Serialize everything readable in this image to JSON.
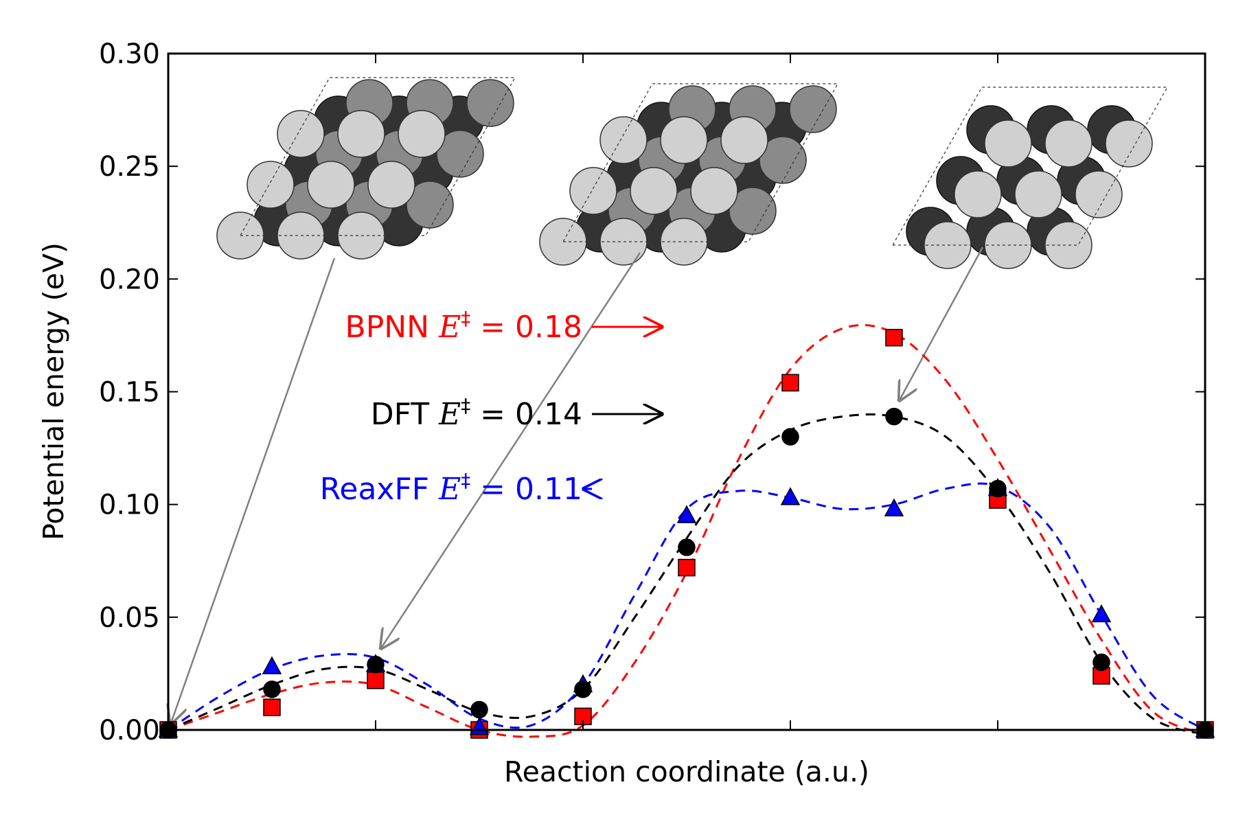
{
  "chart_data": {
    "type": "scatter",
    "xlabel": "Reaction coordinate (a.u.)",
    "ylabel": "Potential energy (eV)",
    "xlim": [
      0,
      10
    ],
    "ylim": [
      0,
      0.3
    ],
    "y_ticks": [
      "0.00",
      "0.05",
      "0.10",
      "0.15",
      "0.20",
      "0.25",
      "0.30"
    ],
    "x": [
      0,
      1,
      2,
      3,
      4,
      5,
      6,
      7,
      8,
      9,
      10
    ],
    "grid": false,
    "series": [
      {
        "name": "BPNN",
        "color": "#ff0000",
        "marker": "square",
        "values": [
          0.0,
          0.01,
          0.022,
          0.0,
          0.006,
          0.072,
          0.154,
          0.174,
          0.102,
          0.024,
          0.0
        ],
        "curve": [
          [
            0,
            0
          ],
          [
            0.5,
            0.008
          ],
          [
            1,
            0.016
          ],
          [
            1.5,
            0.021
          ],
          [
            2,
            0.02
          ],
          [
            2.5,
            0.01
          ],
          [
            3,
            0.0
          ],
          [
            3.5,
            -0.003
          ],
          [
            4,
            0.002
          ],
          [
            4.5,
            0.03
          ],
          [
            5,
            0.07
          ],
          [
            5.5,
            0.12
          ],
          [
            6,
            0.16
          ],
          [
            6.5,
            0.178
          ],
          [
            7,
            0.176
          ],
          [
            7.5,
            0.155
          ],
          [
            8,
            0.12
          ],
          [
            8.5,
            0.08
          ],
          [
            9,
            0.04
          ],
          [
            9.5,
            0.008
          ],
          [
            10,
            -0.002
          ]
        ]
      },
      {
        "name": "DFT",
        "color": "#000000",
        "marker": "circle",
        "values": [
          0.0,
          0.018,
          0.029,
          0.009,
          0.018,
          0.081,
          0.13,
          0.139,
          0.107,
          0.03,
          0.0
        ],
        "curve": [
          [
            0,
            0
          ],
          [
            0.5,
            0.01
          ],
          [
            1,
            0.02
          ],
          [
            1.5,
            0.027
          ],
          [
            2,
            0.027
          ],
          [
            2.5,
            0.018
          ],
          [
            3,
            0.008
          ],
          [
            3.5,
            0.006
          ],
          [
            4,
            0.018
          ],
          [
            4.5,
            0.05
          ],
          [
            5,
            0.085
          ],
          [
            5.5,
            0.117
          ],
          [
            6,
            0.133
          ],
          [
            6.5,
            0.139
          ],
          [
            7,
            0.139
          ],
          [
            7.5,
            0.13
          ],
          [
            8,
            0.105
          ],
          [
            8.5,
            0.07
          ],
          [
            9,
            0.03
          ],
          [
            9.5,
            0.005
          ],
          [
            10,
            -0.002
          ]
        ]
      },
      {
        "name": "ReaxFF",
        "color": "#0000ff",
        "marker": "triangle",
        "values": [
          0.0,
          0.028,
          0.029,
          0.001,
          0.02,
          0.095,
          0.103,
          0.098,
          0.107,
          0.051,
          0.0
        ],
        "curve": [
          [
            0,
            0
          ],
          [
            0.5,
            0.015
          ],
          [
            1,
            0.027
          ],
          [
            1.5,
            0.033
          ],
          [
            2,
            0.032
          ],
          [
            2.5,
            0.02
          ],
          [
            3,
            0.005
          ],
          [
            3.5,
            0.002
          ],
          [
            4,
            0.02
          ],
          [
            4.5,
            0.06
          ],
          [
            5,
            0.098
          ],
          [
            5.5,
            0.106
          ],
          [
            6,
            0.103
          ],
          [
            6.5,
            0.098
          ],
          [
            7,
            0.1
          ],
          [
            7.5,
            0.107
          ],
          [
            8,
            0.108
          ],
          [
            8.5,
            0.09
          ],
          [
            9,
            0.051
          ],
          [
            9.5,
            0.015
          ],
          [
            10,
            0.0
          ]
        ]
      }
    ],
    "annotations": [
      {
        "prefix": "BPNN ",
        "symbol": "E",
        "superscript": "‡",
        "suffix": " = 0.18",
        "color": "#ff0000",
        "arrow_to": [
          6.4,
          0.178
        ]
      },
      {
        "prefix": "DFT ",
        "symbol": "E",
        "superscript": "‡",
        "suffix": " = 0.14",
        "color": "#000000",
        "arrow_to": [
          6.4,
          0.14
        ]
      },
      {
        "prefix": "ReaxFF ",
        "symbol": "E",
        "superscript": "‡",
        "suffix": " = 0.11",
        "color": "#0000ff",
        "arrow_to": [
          5.3,
          0.107
        ]
      }
    ],
    "structure_insets": [
      {
        "points_to": [
          0,
          0.0
        ]
      },
      {
        "points_to": [
          2,
          0.029
        ]
      },
      {
        "points_to": [
          7,
          0.139
        ]
      }
    ]
  }
}
